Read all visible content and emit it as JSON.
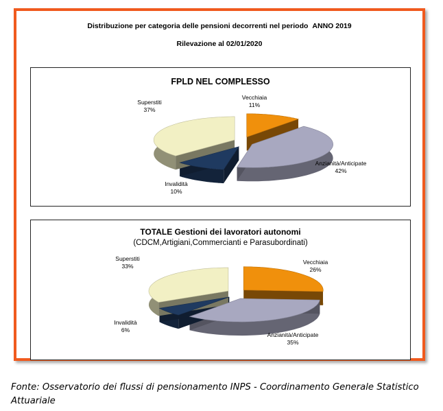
{
  "header": {
    "title": "Distribuzione per categoria delle pensioni decorrenti nel periodo",
    "year": "ANNO 2019",
    "subtitle": "Rilevazione al 02/01/2020"
  },
  "colors": {
    "frame": "#f05a1e",
    "vecchiaia": "#f0900c",
    "anzianita": "#a8a8c0",
    "invalidita": "#1f3a60",
    "superstiti": "#f2f0c4"
  },
  "chart_data": [
    {
      "type": "pie",
      "title": "FPLD NEL COMPLESSO",
      "subtitle": "",
      "slices": [
        {
          "label": "Vecchiaia",
          "pct_label": "11%",
          "value": 11
        },
        {
          "label": "Anzianità/Anticipate",
          "pct_label": "42%",
          "value": 42
        },
        {
          "label": "Invalidità",
          "pct_label": "10%",
          "value": 10
        },
        {
          "label": "Superstiti",
          "pct_label": "37%",
          "value": 37
        }
      ]
    },
    {
      "type": "pie",
      "title": "TOTALE Gestioni dei lavoratori autonomi",
      "subtitle": "(CDCM,Artigiani,Commercianti e Parasubordinati)",
      "slices": [
        {
          "label": "Vecchiaia",
          "pct_label": "26%",
          "value": 26
        },
        {
          "label": "Anzianità/Anticipate",
          "pct_label": "35%",
          "value": 35
        },
        {
          "label": "Invalidità",
          "pct_label": "6%",
          "value": 6
        },
        {
          "label": "Superstiti",
          "pct_label": "33%",
          "value": 33
        }
      ]
    }
  ],
  "footer": "Fonte: Osservatorio dei flussi di pensionamento INPS - Coordinamento Generale Statistico Attuariale"
}
